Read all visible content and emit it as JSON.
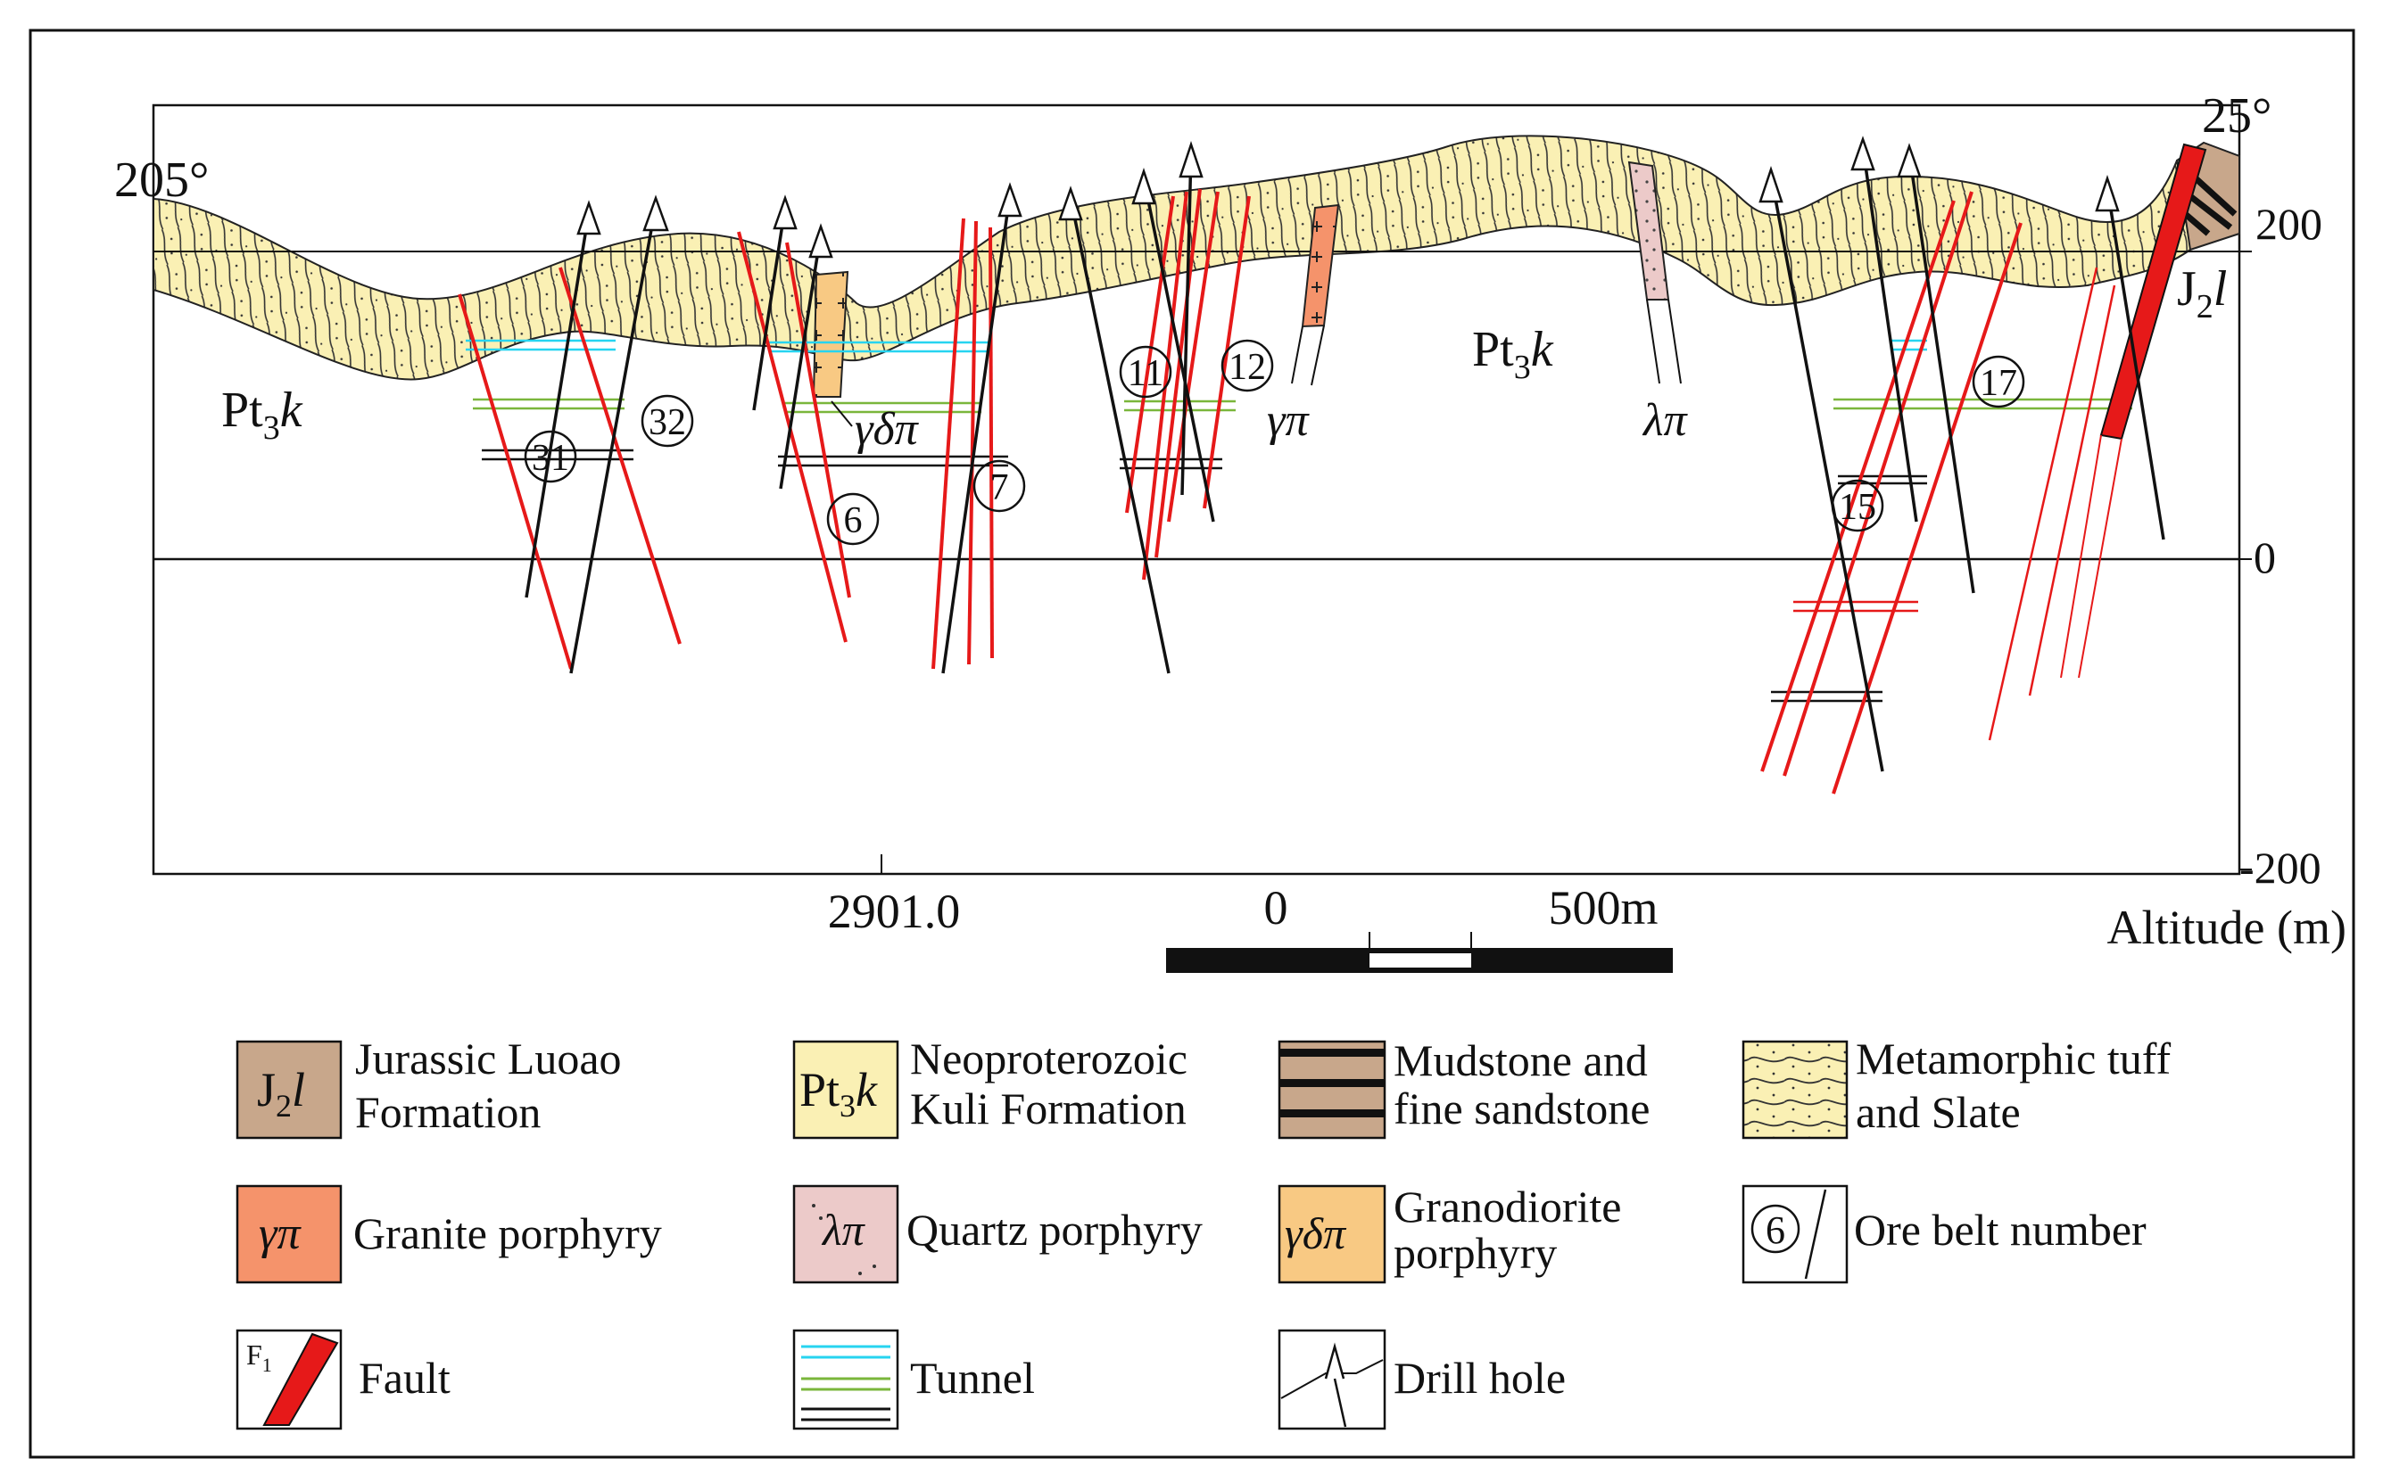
{
  "colors": {
    "slate_fill": "#faf0b4",
    "jurassic_fill": "#c8a78b",
    "granite_fill": "#f5936b",
    "quartz_fill": "#eccac9",
    "granodiorite_fill": "#f8c983",
    "fault_red": "#e61919",
    "tunnel_cyan": "#27d4f0",
    "tunnel_green": "#7ab63b",
    "tunnel_black": "#111111",
    "line_black": "#111111"
  },
  "section": {
    "bearing_left": "205°",
    "bearing_right": "25°",
    "formation_label_main": "Pt",
    "formation_label_sub": "3",
    "formation_label_it": "k",
    "jurassic_label_main": "J",
    "jurassic_label_sub": "2",
    "jurassic_label_it": "l",
    "intrusion_granite": "γπ",
    "intrusion_quartz": "λπ",
    "intrusion_granodiorite": "γδπ",
    "station_label": "2901.0",
    "altitude_title": "Altitude (m)",
    "altitude_ticks": [
      {
        "value": 200,
        "label": "200"
      },
      {
        "value": 0,
        "label": "0"
      },
      {
        "value": -200,
        "label": "-200"
      }
    ],
    "ore_belts": [
      "31",
      "32",
      "6",
      "7",
      "11",
      "12",
      "15",
      "17"
    ]
  },
  "scale_bar": {
    "label_start": "0",
    "label_end": "500m"
  },
  "legend": {
    "items": [
      {
        "id": "jurassic",
        "symbol_main": "J",
        "symbol_sub": "2",
        "symbol_it": "l",
        "lines": [
          "Jurassic Luoao",
          "Formation"
        ]
      },
      {
        "id": "kuli",
        "symbol_main": "Pt",
        "symbol_sub": "3",
        "symbol_it": "k",
        "lines": [
          "Neoproterozoic",
          "Kuli Formation"
        ]
      },
      {
        "id": "mudstone",
        "lines": [
          "Mudstone and",
          "fine sandstone"
        ]
      },
      {
        "id": "tuff",
        "lines": [
          "Metamorphic tuff",
          "and Slate"
        ]
      },
      {
        "id": "granite",
        "symbol": "γπ",
        "lines": [
          "Granite porphyry"
        ]
      },
      {
        "id": "quartz",
        "symbol": "λπ",
        "lines": [
          "Quartz porphyry"
        ]
      },
      {
        "id": "granodiorite",
        "symbol": "γδπ",
        "lines": [
          "Granodiorite",
          "porphyry"
        ]
      },
      {
        "id": "ore-belt",
        "symbol": "6",
        "lines": [
          "Ore belt number"
        ]
      },
      {
        "id": "fault",
        "symbol_main": "F",
        "symbol_sub": "1",
        "lines": [
          "Fault"
        ]
      },
      {
        "id": "tunnel",
        "lines": [
          "Tunnel"
        ]
      },
      {
        "id": "drill",
        "lines": [
          "Drill hole"
        ]
      }
    ]
  }
}
